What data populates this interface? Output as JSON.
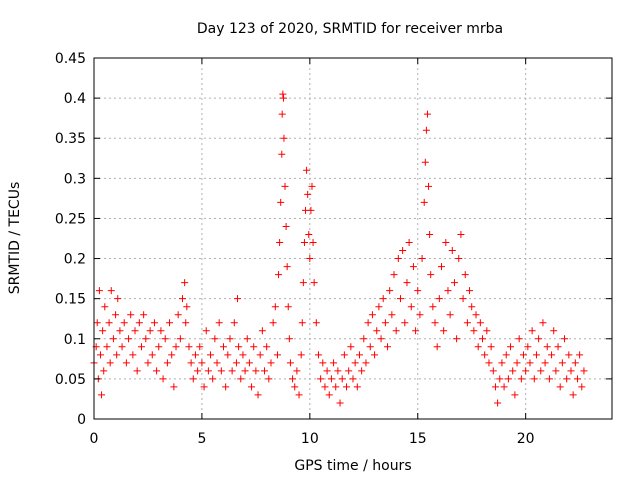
{
  "chart_data": {
    "type": "scatter",
    "title": "Day 123 of 2020, SRMTID for receiver mrba",
    "xlabel": "GPS time / hours",
    "ylabel": "SRMTID / TECUs",
    "xlim": [
      0,
      24
    ],
    "ylim": [
      0,
      0.45
    ],
    "x_ticks": [
      "0",
      "5",
      "10",
      "15",
      "20"
    ],
    "y_ticks": [
      "0",
      "0.05",
      "0.1",
      "0.15",
      "0.2",
      "0.25",
      "0.3",
      "0.35",
      "0.4",
      "0.45"
    ],
    "x_tick_values": [
      0,
      5,
      10,
      15,
      20
    ],
    "y_tick_values": [
      0,
      0.05,
      0.1,
      0.15,
      0.2,
      0.25,
      0.3,
      0.35,
      0.4,
      0.45
    ],
    "grid": true,
    "marker": "+",
    "marker_color": "#ff0000",
    "series": [
      {
        "name": "SRMTID",
        "points": [
          [
            0.0,
            0.07
          ],
          [
            0.1,
            0.09
          ],
          [
            0.15,
            0.12
          ],
          [
            0.2,
            0.05
          ],
          [
            0.25,
            0.16
          ],
          [
            0.3,
            0.08
          ],
          [
            0.35,
            0.03
          ],
          [
            0.4,
            0.11
          ],
          [
            0.45,
            0.06
          ],
          [
            0.5,
            0.14
          ],
          [
            0.6,
            0.09
          ],
          [
            0.7,
            0.12
          ],
          [
            0.75,
            0.07
          ],
          [
            0.8,
            0.16
          ],
          [
            0.9,
            0.1
          ],
          [
            1.0,
            0.13
          ],
          [
            1.05,
            0.08
          ],
          [
            1.1,
            0.15
          ],
          [
            1.2,
            0.11
          ],
          [
            1.3,
            0.09
          ],
          [
            1.4,
            0.12
          ],
          [
            1.5,
            0.07
          ],
          [
            1.6,
            0.1
          ],
          [
            1.7,
            0.13
          ],
          [
            1.8,
            0.08
          ],
          [
            1.9,
            0.11
          ],
          [
            2.0,
            0.06
          ],
          [
            2.1,
            0.12
          ],
          [
            2.2,
            0.09
          ],
          [
            2.3,
            0.13
          ],
          [
            2.4,
            0.1
          ],
          [
            2.5,
            0.07
          ],
          [
            2.6,
            0.11
          ],
          [
            2.7,
            0.08
          ],
          [
            2.8,
            0.12
          ],
          [
            2.9,
            0.06
          ],
          [
            3.0,
            0.09
          ],
          [
            3.1,
            0.11
          ],
          [
            3.2,
            0.05
          ],
          [
            3.3,
            0.1
          ],
          [
            3.4,
            0.07
          ],
          [
            3.5,
            0.12
          ],
          [
            3.6,
            0.08
          ],
          [
            3.7,
            0.04
          ],
          [
            3.8,
            0.09
          ],
          [
            3.9,
            0.13
          ],
          [
            4.0,
            0.1
          ],
          [
            4.1,
            0.15
          ],
          [
            4.2,
            0.17
          ],
          [
            4.25,
            0.12
          ],
          [
            4.3,
            0.14
          ],
          [
            4.4,
            0.09
          ],
          [
            4.5,
            0.07
          ],
          [
            4.6,
            0.05
          ],
          [
            4.7,
            0.08
          ],
          [
            4.8,
            0.06
          ],
          [
            4.9,
            0.09
          ],
          [
            5.0,
            0.07
          ],
          [
            5.1,
            0.04
          ],
          [
            5.2,
            0.11
          ],
          [
            5.3,
            0.06
          ],
          [
            5.4,
            0.08
          ],
          [
            5.5,
            0.05
          ],
          [
            5.6,
            0.1
          ],
          [
            5.7,
            0.07
          ],
          [
            5.8,
            0.12
          ],
          [
            5.9,
            0.06
          ],
          [
            6.0,
            0.09
          ],
          [
            6.1,
            0.04
          ],
          [
            6.2,
            0.08
          ],
          [
            6.3,
            0.1
          ],
          [
            6.4,
            0.06
          ],
          [
            6.5,
            0.12
          ],
          [
            6.6,
            0.07
          ],
          [
            6.65,
            0.15
          ],
          [
            6.7,
            0.09
          ],
          [
            6.8,
            0.05
          ],
          [
            6.9,
            0.08
          ],
          [
            7.0,
            0.06
          ],
          [
            7.1,
            0.1
          ],
          [
            7.2,
            0.07
          ],
          [
            7.3,
            0.04
          ],
          [
            7.4,
            0.09
          ],
          [
            7.5,
            0.06
          ],
          [
            7.6,
            0.03
          ],
          [
            7.7,
            0.08
          ],
          [
            7.8,
            0.11
          ],
          [
            7.9,
            0.06
          ],
          [
            8.0,
            0.09
          ],
          [
            8.1,
            0.05
          ],
          [
            8.2,
            0.07
          ],
          [
            8.3,
            0.12
          ],
          [
            8.4,
            0.14
          ],
          [
            8.5,
            0.08
          ],
          [
            8.55,
            0.18
          ],
          [
            8.6,
            0.22
          ],
          [
            8.65,
            0.27
          ],
          [
            8.7,
            0.33
          ],
          [
            8.72,
            0.38
          ],
          [
            8.75,
            0.405
          ],
          [
            8.78,
            0.4
          ],
          [
            8.8,
            0.35
          ],
          [
            8.85,
            0.29
          ],
          [
            8.9,
            0.24
          ],
          [
            8.95,
            0.19
          ],
          [
            9.0,
            0.14
          ],
          [
            9.05,
            0.1
          ],
          [
            9.1,
            0.07
          ],
          [
            9.2,
            0.05
          ],
          [
            9.3,
            0.04
          ],
          [
            9.4,
            0.06
          ],
          [
            9.5,
            0.03
          ],
          [
            9.6,
            0.08
          ],
          [
            9.65,
            0.12
          ],
          [
            9.7,
            0.17
          ],
          [
            9.75,
            0.22
          ],
          [
            9.8,
            0.26
          ],
          [
            9.85,
            0.31
          ],
          [
            9.9,
            0.28
          ],
          [
            9.95,
            0.23
          ],
          [
            10.0,
            0.2
          ],
          [
            10.05,
            0.26
          ],
          [
            10.1,
            0.29
          ],
          [
            10.15,
            0.22
          ],
          [
            10.2,
            0.17
          ],
          [
            10.3,
            0.12
          ],
          [
            10.4,
            0.08
          ],
          [
            10.5,
            0.05
          ],
          [
            10.6,
            0.07
          ],
          [
            10.7,
            0.04
          ],
          [
            10.8,
            0.06
          ],
          [
            10.9,
            0.03
          ],
          [
            11.0,
            0.05
          ],
          [
            11.1,
            0.07
          ],
          [
            11.2,
            0.04
          ],
          [
            11.3,
            0.06
          ],
          [
            11.4,
            0.02
          ],
          [
            11.5,
            0.05
          ],
          [
            11.6,
            0.08
          ],
          [
            11.7,
            0.04
          ],
          [
            11.8,
            0.06
          ],
          [
            11.9,
            0.09
          ],
          [
            12.0,
            0.05
          ],
          [
            12.1,
            0.07
          ],
          [
            12.2,
            0.04
          ],
          [
            12.3,
            0.08
          ],
          [
            12.4,
            0.06
          ],
          [
            12.5,
            0.1
          ],
          [
            12.6,
            0.07
          ],
          [
            12.7,
            0.12
          ],
          [
            12.8,
            0.09
          ],
          [
            12.9,
            0.13
          ],
          [
            13.0,
            0.08
          ],
          [
            13.1,
            0.11
          ],
          [
            13.2,
            0.14
          ],
          [
            13.3,
            0.1
          ],
          [
            13.4,
            0.15
          ],
          [
            13.5,
            0.12
          ],
          [
            13.6,
            0.09
          ],
          [
            13.7,
            0.16
          ],
          [
            13.8,
            0.13
          ],
          [
            13.9,
            0.18
          ],
          [
            14.0,
            0.11
          ],
          [
            14.1,
            0.2
          ],
          [
            14.2,
            0.15
          ],
          [
            14.3,
            0.21
          ],
          [
            14.4,
            0.12
          ],
          [
            14.5,
            0.17
          ],
          [
            14.6,
            0.22
          ],
          [
            14.7,
            0.14
          ],
          [
            14.8,
            0.19
          ],
          [
            14.9,
            0.11
          ],
          [
            15.0,
            0.16
          ],
          [
            15.1,
            0.13
          ],
          [
            15.2,
            0.2
          ],
          [
            15.3,
            0.27
          ],
          [
            15.35,
            0.32
          ],
          [
            15.4,
            0.36
          ],
          [
            15.45,
            0.38
          ],
          [
            15.5,
            0.29
          ],
          [
            15.55,
            0.23
          ],
          [
            15.6,
            0.18
          ],
          [
            15.7,
            0.14
          ],
          [
            15.8,
            0.12
          ],
          [
            15.9,
            0.09
          ],
          [
            16.0,
            0.15
          ],
          [
            16.1,
            0.19
          ],
          [
            16.2,
            0.11
          ],
          [
            16.3,
            0.22
          ],
          [
            16.4,
            0.16
          ],
          [
            16.5,
            0.13
          ],
          [
            16.6,
            0.21
          ],
          [
            16.7,
            0.17
          ],
          [
            16.8,
            0.1
          ],
          [
            16.9,
            0.2
          ],
          [
            17.0,
            0.23
          ],
          [
            17.1,
            0.15
          ],
          [
            17.2,
            0.18
          ],
          [
            17.3,
            0.12
          ],
          [
            17.4,
            0.16
          ],
          [
            17.5,
            0.14
          ],
          [
            17.6,
            0.11
          ],
          [
            17.7,
            0.13
          ],
          [
            17.8,
            0.09
          ],
          [
            17.9,
            0.12
          ],
          [
            18.0,
            0.1
          ],
          [
            18.1,
            0.08
          ],
          [
            18.2,
            0.11
          ],
          [
            18.3,
            0.07
          ],
          [
            18.4,
            0.09
          ],
          [
            18.5,
            0.06
          ],
          [
            18.6,
            0.04
          ],
          [
            18.7,
            0.02
          ],
          [
            18.8,
            0.05
          ],
          [
            18.9,
            0.07
          ],
          [
            19.0,
            0.04
          ],
          [
            19.1,
            0.08
          ],
          [
            19.2,
            0.05
          ],
          [
            19.3,
            0.09
          ],
          [
            19.4,
            0.06
          ],
          [
            19.5,
            0.03
          ],
          [
            19.6,
            0.07
          ],
          [
            19.7,
            0.1
          ],
          [
            19.8,
            0.05
          ],
          [
            19.9,
            0.08
          ],
          [
            20.0,
            0.06
          ],
          [
            20.1,
            0.09
          ],
          [
            20.2,
            0.07
          ],
          [
            20.3,
            0.11
          ],
          [
            20.4,
            0.05
          ],
          [
            20.5,
            0.08
          ],
          [
            20.6,
            0.1
          ],
          [
            20.7,
            0.06
          ],
          [
            20.8,
            0.12
          ],
          [
            20.9,
            0.07
          ],
          [
            21.0,
            0.09
          ],
          [
            21.1,
            0.05
          ],
          [
            21.2,
            0.08
          ],
          [
            21.3,
            0.11
          ],
          [
            21.4,
            0.06
          ],
          [
            21.5,
            0.09
          ],
          [
            21.6,
            0.04
          ],
          [
            21.7,
            0.07
          ],
          [
            21.8,
            0.1
          ],
          [
            21.9,
            0.05
          ],
          [
            22.0,
            0.08
          ],
          [
            22.1,
            0.06
          ],
          [
            22.2,
            0.03
          ],
          [
            22.3,
            0.07
          ],
          [
            22.4,
            0.05
          ],
          [
            22.5,
            0.08
          ],
          [
            22.6,
            0.04
          ],
          [
            22.7,
            0.06
          ]
        ]
      }
    ]
  }
}
